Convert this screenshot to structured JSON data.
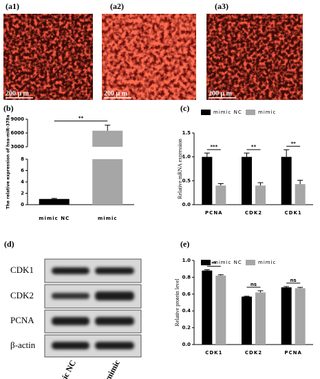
{
  "images": [
    {
      "label": "(a1)",
      "scale": "200 μ m"
    },
    {
      "label": "(a2)",
      "scale": "200 μ m"
    },
    {
      "label": "(a3)",
      "scale": "200 μ m"
    }
  ],
  "chart_data": [
    {
      "type": "broken_bar",
      "label": "(b)",
      "ylabel": "The relative expression of hsa-miR-378a",
      "categories": [
        "mimic NC",
        "mimic"
      ],
      "values": [
        1,
        6500
      ],
      "errors": [
        0.1,
        1200
      ],
      "colors": [
        "#000000",
        "#a6a6a6"
      ],
      "lower_ylim": [
        0,
        8
      ],
      "lower_yticks": [
        0,
        2,
        4,
        6,
        8
      ],
      "upper_ylim": [
        3000,
        9000
      ],
      "upper_yticks": [
        3000,
        6000,
        9000
      ],
      "significance": "**"
    },
    {
      "type": "grouped_bar",
      "label": "(c)",
      "ylabel": "Relative mRNA expression",
      "categories": [
        "PCNA",
        "CDK2",
        "CDK1"
      ],
      "series": [
        {
          "name": "mimic NC",
          "color": "#000000",
          "values": [
            1.0,
            1.0,
            1.0
          ],
          "errors": [
            0.08,
            0.08,
            0.15
          ]
        },
        {
          "name": "mimic",
          "color": "#a6a6a6",
          "values": [
            0.4,
            0.4,
            0.43
          ],
          "errors": [
            0.04,
            0.06,
            0.08
          ]
        }
      ],
      "ylim": [
        0,
        1.5
      ],
      "yticks": [
        {
          "value": 0,
          "label": "0.0"
        },
        0.5,
        {
          "value": 1,
          "label": "1.0"
        },
        1.5
      ],
      "significance": [
        "***",
        "**",
        "**"
      ],
      "legend": "top"
    },
    {
      "type": "grouped_bar",
      "label": "(e)",
      "ylabel": "Relative protein level",
      "categories": [
        "CDK1",
        "CDK2",
        "PCNA"
      ],
      "series": [
        {
          "name": "mimic NC",
          "color": "#000000",
          "values": [
            0.88,
            0.57,
            0.68
          ],
          "errors": [
            0.01,
            0.005,
            0.01
          ]
        },
        {
          "name": "mimic",
          "color": "#a6a6a6",
          "values": [
            0.82,
            0.62,
            0.67
          ],
          "errors": [
            0.01,
            0.02,
            0.01
          ]
        }
      ],
      "ylim": [
        0,
        1
      ],
      "yticks": [
        {
          "value": 0,
          "label": "0.0"
        },
        0.2,
        0.4,
        0.6,
        0.8,
        {
          "value": 1,
          "label": "1.0"
        }
      ],
      "significance": [
        "**",
        "ns",
        "ns"
      ],
      "legend": "top"
    }
  ],
  "blot": {
    "label": "(d)",
    "rows": [
      "CDK1",
      "CDK2",
      "PCNA",
      "β-actin"
    ],
    "lanes": [
      "mimic NC",
      "mimic"
    ]
  }
}
